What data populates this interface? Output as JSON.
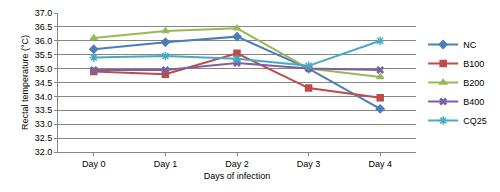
{
  "chart_data": {
    "type": "line",
    "x_label": "Days of infection",
    "y_label": "Rectal temperature (°C)",
    "categories": [
      "Day 0",
      "Day 1",
      "Day 2",
      "Day 3",
      "Day 4"
    ],
    "ylim": [
      32.0,
      37.0
    ],
    "yticks": [
      {
        "value": 32,
        "label": "32.0"
      },
      32.5,
      {
        "value": 33,
        "label": "33.0"
      },
      33.5,
      {
        "value": 34,
        "label": "34.0"
      },
      34.5,
      {
        "value": 35,
        "label": "35.0"
      },
      35.5,
      {
        "value": 36,
        "label": "36.0"
      },
      36.5,
      {
        "value": 37,
        "label": "37.0"
      }
    ],
    "grid": true,
    "legend": "right",
    "series": [
      {
        "name": "NC",
        "color": "#4a7ebb",
        "marker": "diamond",
        "line_style": "solid",
        "values": [
          35.7,
          35.95,
          36.15,
          35.0,
          33.55
        ]
      },
      {
        "name": "B100",
        "color": "#be4b48",
        "marker": "square",
        "line_style": "solid",
        "values": [
          34.9,
          34.8,
          35.55,
          34.3,
          33.95
        ]
      },
      {
        "name": "B200",
        "color": "#98b954",
        "marker": "triangle",
        "line_style": "solid",
        "values": [
          36.1,
          36.35,
          36.45,
          35.0,
          34.7
        ]
      },
      {
        "name": "B400",
        "color": "#7d60a0",
        "marker": "x",
        "line_style": "solid",
        "values": [
          34.95,
          34.95,
          35.2,
          35.0,
          34.95
        ]
      },
      {
        "name": "CQ25",
        "color": "#46aac5",
        "marker": "asterisk",
        "line_style": "solid",
        "values": [
          35.4,
          35.45,
          35.35,
          35.1,
          36.0
        ]
      }
    ]
  }
}
